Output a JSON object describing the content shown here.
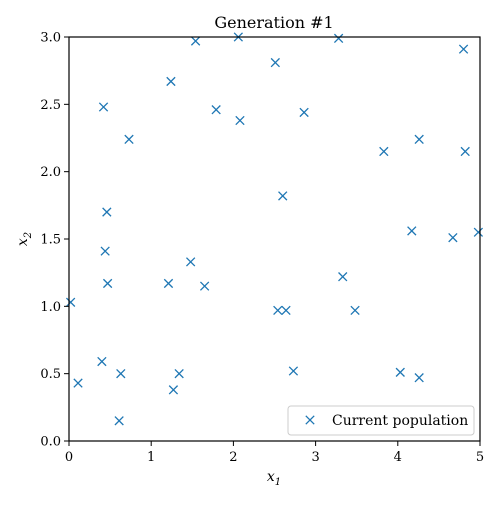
{
  "chart_data": {
    "type": "scatter",
    "title": "Generation #1",
    "xlabel": "x",
    "xlabel_sub": "1",
    "ylabel": "x",
    "ylabel_sub": "2",
    "xlim": [
      0,
      5
    ],
    "ylim": [
      0,
      3
    ],
    "xticks": [
      "0",
      "1",
      "2",
      "3",
      "4",
      "5"
    ],
    "yticks": [
      "0.0",
      "0.5",
      "1.0",
      "1.5",
      "2.0",
      "2.5",
      "3.0"
    ],
    "grid": false,
    "legend_position": "bottom-right",
    "marker": "x",
    "series": [
      {
        "name": "Current population",
        "color": "#1f77b4",
        "points": [
          [
            0.02,
            1.03
          ],
          [
            0.11,
            0.43
          ],
          [
            0.4,
            0.59
          ],
          [
            0.42,
            2.48
          ],
          [
            0.44,
            1.41
          ],
          [
            0.46,
            1.7
          ],
          [
            0.47,
            1.17
          ],
          [
            0.61,
            0.15
          ],
          [
            0.63,
            0.5
          ],
          [
            0.73,
            2.24
          ],
          [
            1.21,
            1.17
          ],
          [
            1.24,
            2.67
          ],
          [
            1.27,
            0.38
          ],
          [
            1.34,
            0.5
          ],
          [
            1.48,
            1.33
          ],
          [
            1.54,
            2.97
          ],
          [
            1.65,
            1.15
          ],
          [
            1.79,
            2.46
          ],
          [
            2.06,
            3.0
          ],
          [
            2.08,
            2.38
          ],
          [
            2.51,
            2.81
          ],
          [
            2.54,
            0.97
          ],
          [
            2.6,
            1.82
          ],
          [
            2.64,
            0.97
          ],
          [
            2.73,
            0.52
          ],
          [
            2.86,
            2.44
          ],
          [
            3.28,
            2.99
          ],
          [
            3.33,
            1.22
          ],
          [
            3.48,
            0.97
          ],
          [
            3.83,
            2.15
          ],
          [
            4.03,
            0.51
          ],
          [
            4.17,
            1.56
          ],
          [
            4.26,
            2.24
          ],
          [
            4.26,
            0.47
          ],
          [
            4.67,
            1.51
          ],
          [
            4.8,
            2.91
          ],
          [
            4.82,
            2.15
          ],
          [
            4.98,
            1.55
          ]
        ]
      }
    ]
  }
}
